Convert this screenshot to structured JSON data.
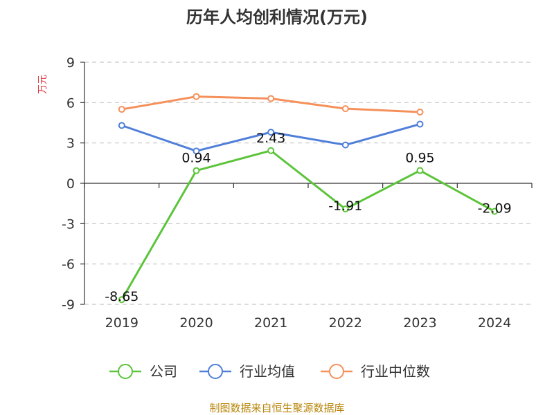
{
  "chart_data": {
    "type": "line",
    "title": "历年人均创利情况(万元)",
    "ylabel": "万元",
    "categories": [
      "2019",
      "2020",
      "2021",
      "2022",
      "2023",
      "2024"
    ],
    "ylim": [
      -9,
      9
    ],
    "yticks": [
      9,
      6,
      3,
      0,
      -3,
      -6,
      -9
    ],
    "grid": true,
    "legend_position": "bottom",
    "series": [
      {
        "name": "公司",
        "color": "#5cc43a",
        "values": [
          -8.65,
          0.94,
          2.43,
          -1.91,
          0.95,
          -2.09
        ],
        "labels": [
          "-8.65",
          "0.94",
          "2.43",
          "-1.91",
          "0.95",
          "-2.09"
        ]
      },
      {
        "name": "行业均值",
        "color": "#4f7fd9",
        "values": [
          4.3,
          2.4,
          3.8,
          2.85,
          4.4,
          null
        ]
      },
      {
        "name": "行业中位数",
        "color": "#f5905a",
        "values": [
          5.5,
          6.45,
          6.3,
          5.55,
          5.3,
          null
        ]
      }
    ],
    "source": "制图数据来自恒生聚源数据库"
  }
}
